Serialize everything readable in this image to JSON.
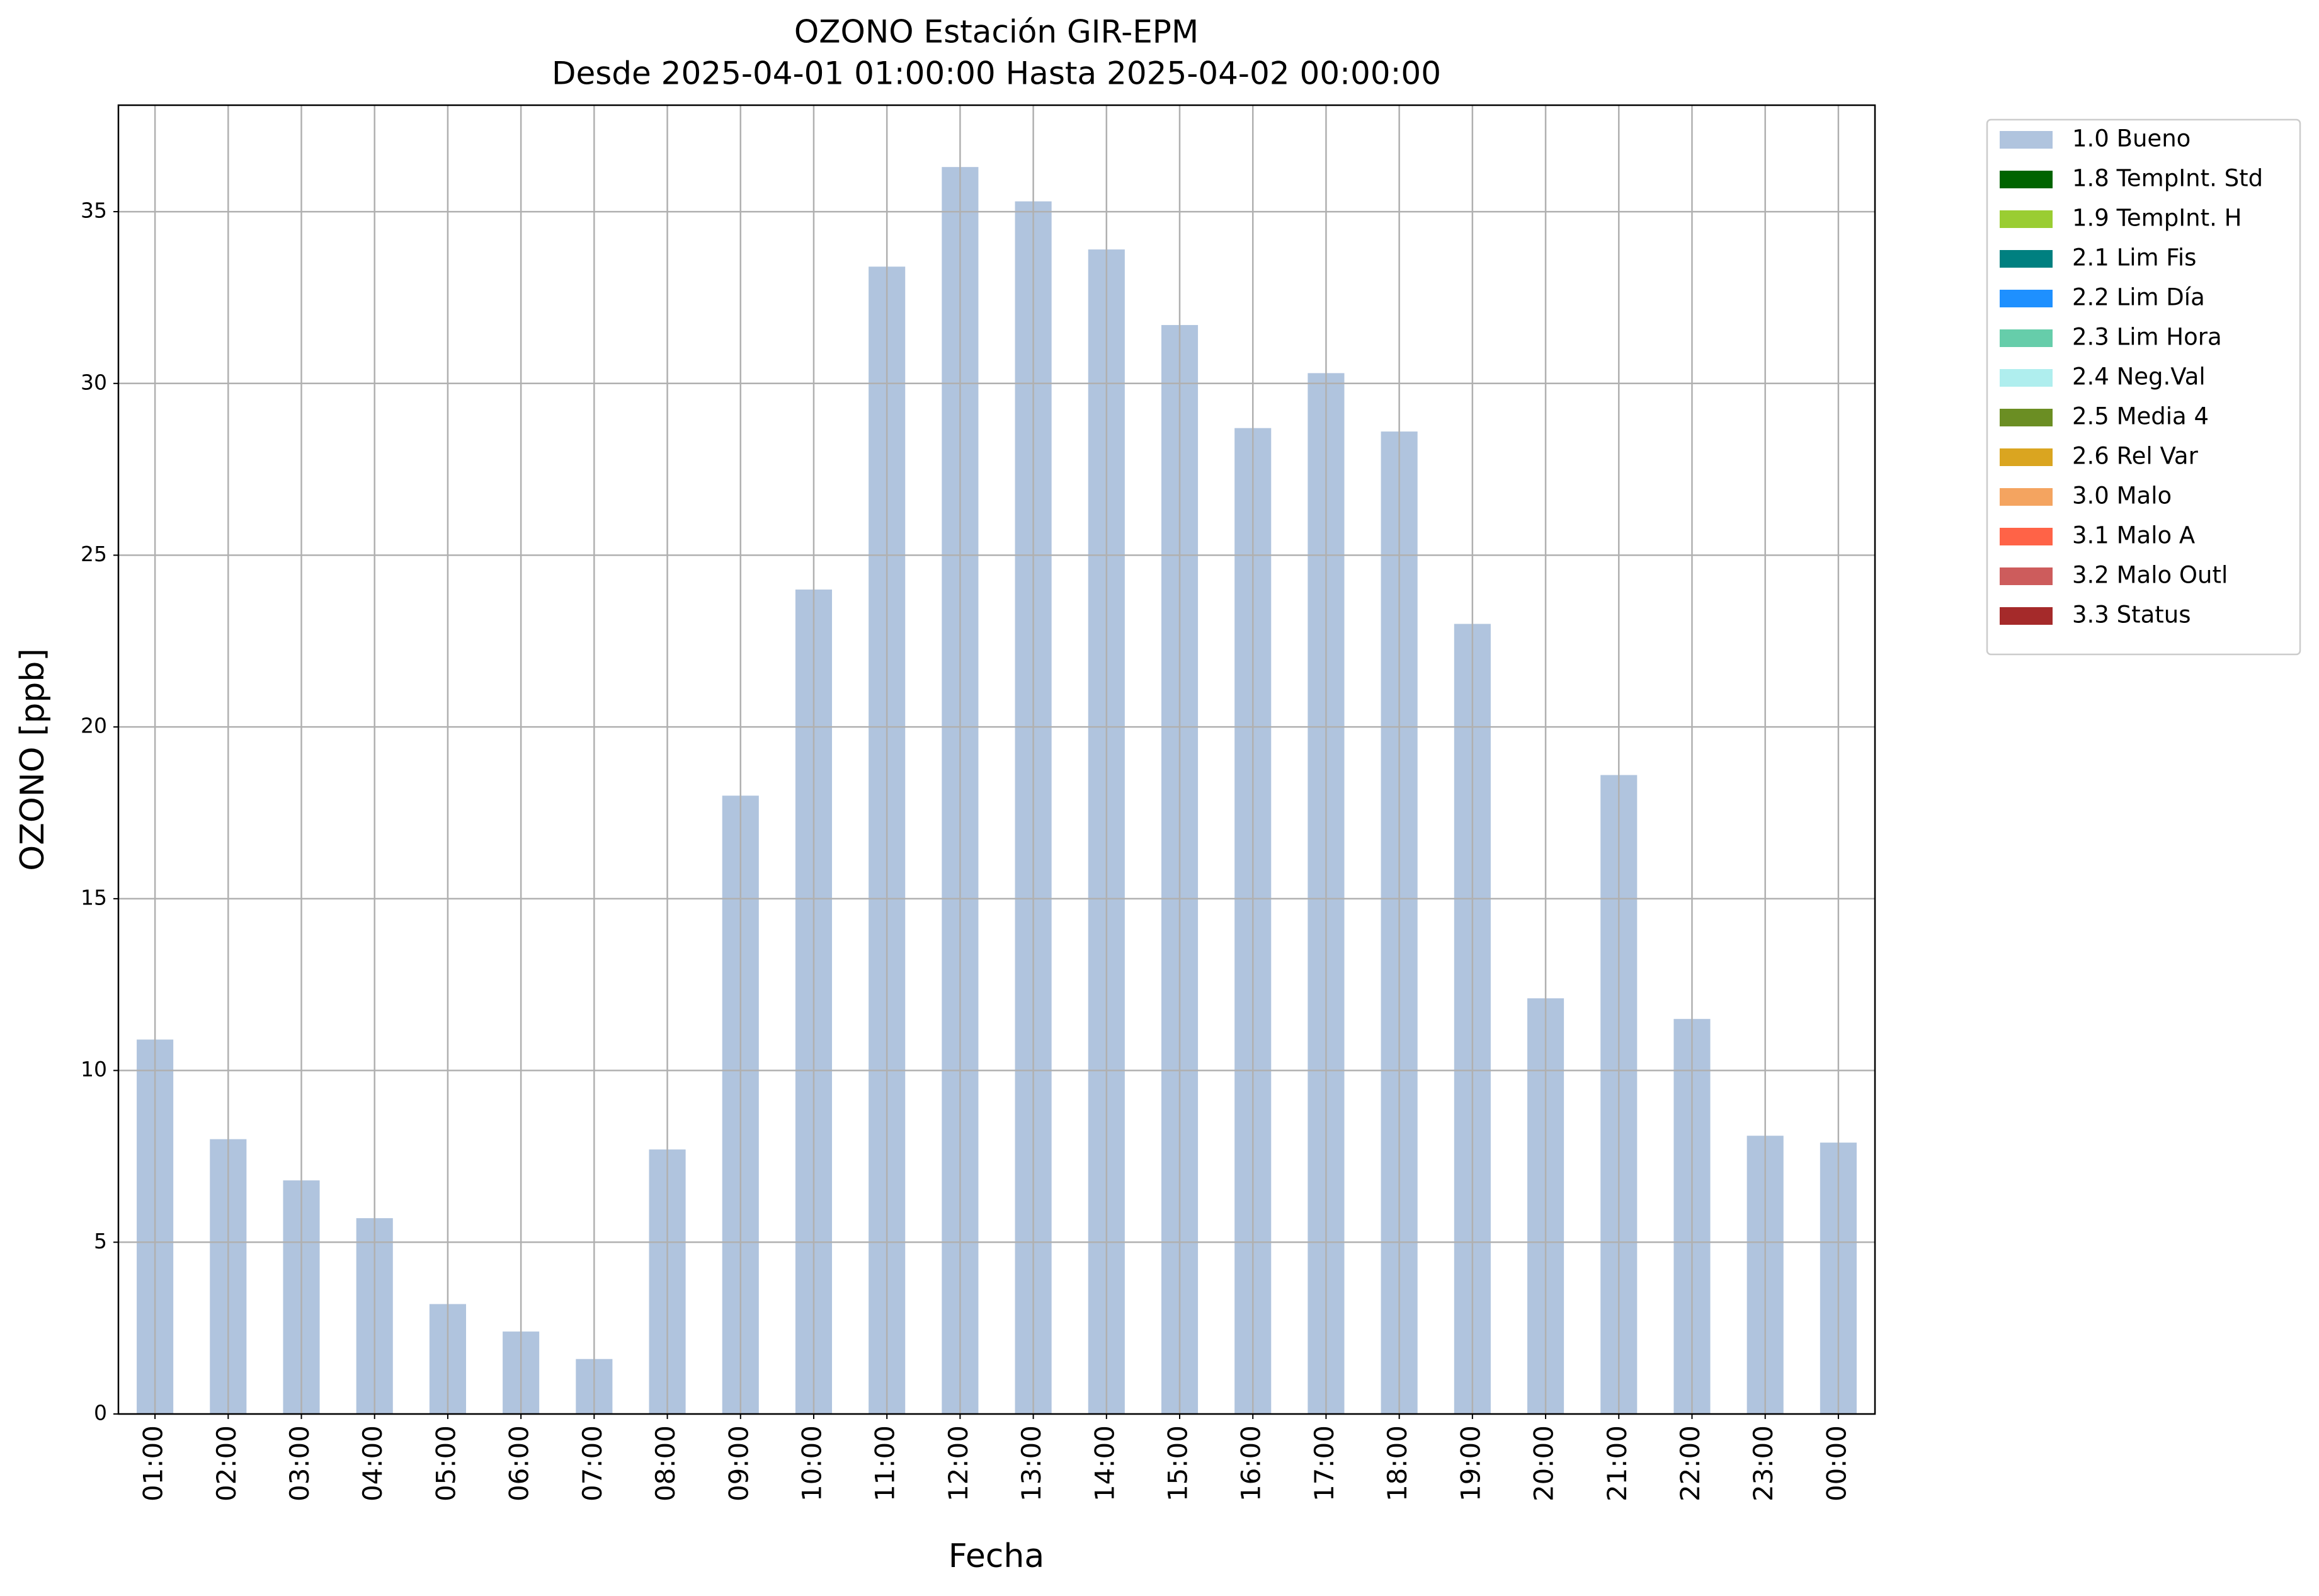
{
  "chart_data": {
    "type": "bar",
    "title": "OZONO Estación GIR-EPM",
    "subtitle": "Desde 2025-04-01 01:00:00 Hasta 2025-04-02 00:00:00",
    "x_label": "Fecha",
    "y_label": "OZONO [ppb]",
    "categories": [
      "01:00",
      "02:00",
      "03:00",
      "04:00",
      "05:00",
      "06:00",
      "07:00",
      "08:00",
      "09:00",
      "10:00",
      "11:00",
      "12:00",
      "13:00",
      "14:00",
      "15:00",
      "16:00",
      "17:00",
      "18:00",
      "19:00",
      "20:00",
      "21:00",
      "22:00",
      "23:00",
      "00:00"
    ],
    "series": [
      {
        "name": "1.0 Bueno",
        "color": "#b0c4de",
        "values": [
          10.9,
          8.0,
          6.8,
          5.7,
          3.2,
          2.4,
          1.6,
          7.7,
          18.0,
          24.0,
          33.4,
          36.3,
          35.3,
          33.9,
          31.7,
          28.7,
          30.3,
          28.6,
          23.0,
          12.1,
          18.6,
          11.5,
          8.1,
          7.9
        ]
      }
    ],
    "legend": [
      {
        "name": "1.0 Bueno",
        "color": "#b0c4de"
      },
      {
        "name": "1.8 TempInt. Std",
        "color": "#006400"
      },
      {
        "name": "1.9 TempInt. H",
        "color": "#9acd32"
      },
      {
        "name": "2.1 Lim Fis",
        "color": "#008080"
      },
      {
        "name": "2.2 Lim Día",
        "color": "#1e90ff"
      },
      {
        "name": "2.3 Lim Hora",
        "color": "#66cdaa"
      },
      {
        "name": "2.4 Neg.Val",
        "color": "#afeeee"
      },
      {
        "name": "2.5 Media 4",
        "color": "#6b8e23"
      },
      {
        "name": "2.6 Rel Var",
        "color": "#daa520"
      },
      {
        "name": "3.0 Malo",
        "color": "#f4a460"
      },
      {
        "name": "3.1 Malo A",
        "color": "#ff6347"
      },
      {
        "name": "3.2 Malo Outl",
        "color": "#cd5c5c"
      },
      {
        "name": "3.3 Status",
        "color": "#a52a2a"
      }
    ],
    "legend_position": "outside upper right",
    "ylim": [
      0,
      38.1
    ],
    "yticks": [
      0,
      5,
      10,
      15,
      20,
      25,
      30,
      35
    ],
    "grid": true
  }
}
